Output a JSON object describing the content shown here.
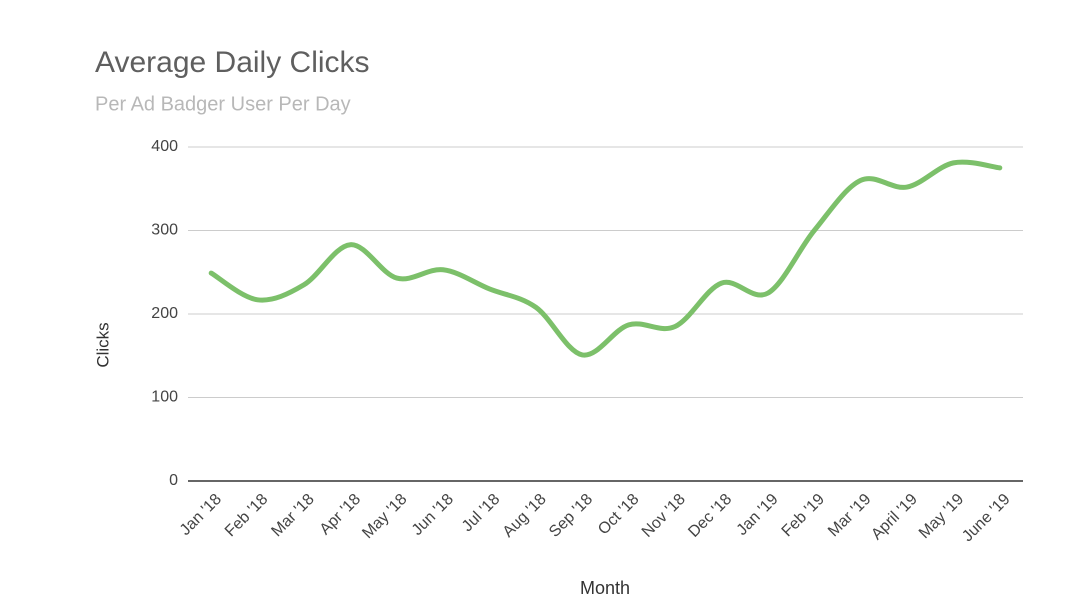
{
  "chart_data": {
    "type": "line",
    "title": "Average Daily Clicks",
    "subtitle": "Per Ad Badger User Per Day",
    "x_label": "Month",
    "y_label": "Clicks",
    "categories": [
      "Jan '18",
      "Feb '18",
      "Mar '18",
      "Apr '18",
      "May '18",
      "Jun '18",
      "Jul '18",
      "Aug '18",
      "Sep '18",
      "Oct '18",
      "Nov '18",
      "Dec '18",
      "Jan '19",
      "Feb '19",
      "Mar '19",
      "April '19",
      "May '19",
      "June '19"
    ],
    "series": [
      {
        "name": "Clicks",
        "color": "#7cc06a",
        "values": [
          249,
          217,
          235,
          283,
          243,
          253,
          230,
          208,
          151,
          187,
          185,
          237,
          225,
          300,
          360,
          352,
          381,
          375
        ]
      }
    ],
    "ylim": [
      0,
      400
    ],
    "yticks": [
      0,
      100,
      200,
      300,
      400
    ],
    "grid": true
  }
}
